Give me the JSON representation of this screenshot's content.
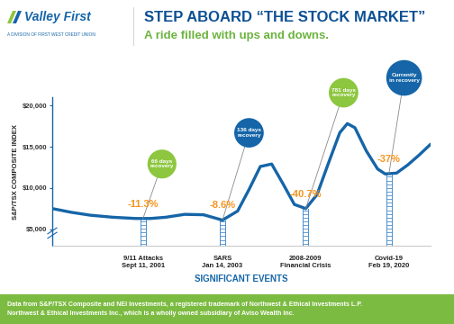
{
  "header": {
    "brand": "Valley First",
    "brand_tagline": "A DIVISION OF FIRST WEST CREDIT UNION",
    "title": "STEP ABOARD “THE STOCK MARKET”",
    "subtitle": "A ride filled with ups and downs."
  },
  "chart_data": {
    "type": "line",
    "color": "#1565a8",
    "x_label": "SIGNIFICANT EVENTS",
    "y_label": "S&P/TSX COMPOSITE INDEX",
    "x": [
      0,
      5,
      10,
      16,
      22,
      26,
      30,
      35,
      40,
      45,
      49,
      52,
      55,
      58,
      61,
      64,
      67,
      70,
      73,
      76,
      78,
      80,
      83,
      86,
      88,
      91,
      94,
      97,
      100
    ],
    "values": [
      7500,
      7050,
      6700,
      6450,
      6300,
      6300,
      6450,
      6800,
      6750,
      6100,
      7200,
      9800,
      12600,
      12900,
      10500,
      8000,
      7500,
      9200,
      13000,
      16700,
      17800,
      17300,
      14500,
      12300,
      11700,
      11800,
      12800,
      14000,
      15300
    ],
    "xlim": [
      0,
      100
    ],
    "xticks": [
      {
        "value": 24,
        "label": "9/11 Attacks\nSept 11, 2001"
      },
      {
        "value": 45,
        "label": "SARS\nJan 14, 2003"
      },
      {
        "value": 67,
        "label": "2008-2009\nFinancial Crisis"
      },
      {
        "value": 89,
        "label": "Covid-19\nFeb 19, 2020"
      }
    ],
    "ylim": [
      3000,
      21000
    ],
    "yticks": [
      {
        "value": 5000,
        "label": "$5,000"
      },
      {
        "value": 10000,
        "label": "$10,000"
      },
      {
        "value": 15000,
        "label": "$15,000"
      },
      {
        "value": 20000,
        "label": "$20,000"
      }
    ],
    "grid": false,
    "events": [
      {
        "x": 24,
        "drop": -11.3,
        "drop_label": "-11.3%",
        "recovery": "66 days\nrecovery",
        "color": "#8dc63f"
      },
      {
        "x": 45,
        "drop": -8.6,
        "drop_label": "-8.6%",
        "recovery": "136 days\nrecovery",
        "color": "#1565a8"
      },
      {
        "x": 67,
        "drop": -40.7,
        "drop_label": "-40.7%",
        "recovery": "781 days\nrecovery",
        "color": "#8dc63f"
      },
      {
        "x": 89,
        "drop": -37,
        "drop_label": "-37%",
        "recovery": "Currently\nin recovery",
        "color": "#1565a8"
      }
    ],
    "drop_color": "#f7941d"
  },
  "footer": "Data from S&P/TSX Composite and NEI Investments, a registered trademark of Northwest & Ethical Investments L.P.\nNorthwest & Ethical Investments Inc., which is a wholly owned subsidiary of Aviso Wealth Inc."
}
